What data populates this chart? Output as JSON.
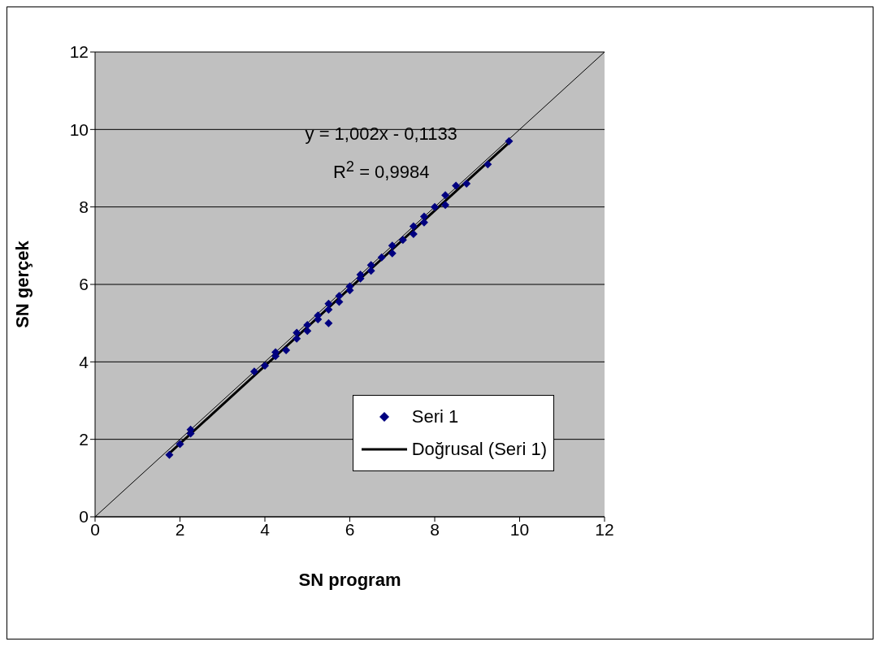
{
  "chart_data": {
    "type": "scatter",
    "xlabel": "SN program",
    "ylabel": "SN gerçek",
    "xlim": [
      0,
      12
    ],
    "ylim": [
      0,
      12
    ],
    "xticks": [
      0,
      2,
      4,
      6,
      8,
      10,
      12
    ],
    "yticks": [
      0,
      2,
      4,
      6,
      8,
      10,
      12
    ],
    "grid": "y",
    "legend": "bottom right",
    "annotations": [
      "y = 1,002x - 0,1133",
      "R$^{2}$ = 0,9984"
    ],
    "series": [
      {
        "name": "Seri 1",
        "marker": "diamond",
        "color": "#000080",
        "x": [
          1.75,
          2,
          2.25,
          2.25,
          3.75,
          4,
          4.25,
          4.25,
          4.5,
          4.75,
          4.75,
          5,
          5,
          5.25,
          5.25,
          5.5,
          5.5,
          5.5,
          5.75,
          5.75,
          6,
          6,
          6.25,
          6.25,
          6.5,
          6.5,
          6.75,
          7,
          7,
          7.25,
          7.5,
          7.5,
          7.75,
          7.75,
          8,
          8.25,
          8.25,
          8.5,
          8.75,
          9.25,
          9.75
        ],
        "values": [
          1.6,
          1.88,
          2.15,
          2.25,
          3.75,
          3.9,
          4.15,
          4.25,
          4.3,
          4.6,
          4.75,
          4.8,
          4.95,
          5.1,
          5.2,
          5.0,
          5.35,
          5.5,
          5.55,
          5.7,
          5.85,
          5.95,
          6.15,
          6.25,
          6.35,
          6.5,
          6.7,
          6.8,
          7.0,
          7.15,
          7.3,
          7.5,
          7.6,
          7.75,
          8.0,
          8.05,
          8.3,
          8.55,
          8.6,
          9.1,
          9.7
        ]
      },
      {
        "name": "Doğrusal (Seri 1)",
        "type": "line",
        "color": "#000000",
        "line_style": "solid",
        "x": [
          1.75,
          9.75
        ],
        "values": [
          1.64,
          9.66
        ]
      },
      {
        "type": "line",
        "color": "#000000",
        "line_style": "solid",
        "x": [
          0,
          12
        ],
        "values": [
          0,
          12
        ]
      }
    ]
  }
}
